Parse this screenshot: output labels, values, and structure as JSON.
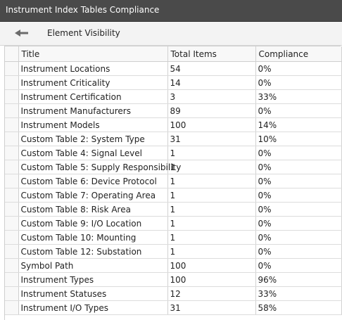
{
  "window": {
    "title": "Instrument Index Tables Compliance"
  },
  "toolbar": {
    "back_icon": "arrow-left-icon",
    "label": "Element Visibility"
  },
  "table": {
    "columns": [
      "Title",
      "Total Items",
      "Compliance"
    ],
    "rows": [
      {
        "title": "Instrument Locations",
        "total": "54",
        "compliance": "0%"
      },
      {
        "title": "Instrument Criticality",
        "total": "14",
        "compliance": "0%"
      },
      {
        "title": "Instrument Certification",
        "total": "3",
        "compliance": "33%"
      },
      {
        "title": "Instrument Manufacturers",
        "total": "89",
        "compliance": "0%"
      },
      {
        "title": "Instrument Models",
        "total": "100",
        "compliance": "14%"
      },
      {
        "title": "Custom Table 2: System Type",
        "total": "31",
        "compliance": "10%"
      },
      {
        "title": "Custom Table 4: Signal Level",
        "total": "1",
        "compliance": "0%"
      },
      {
        "title": "Custom Table 5: Supply Responsibility",
        "total": "1",
        "compliance": "0%"
      },
      {
        "title": "Custom Table 6: Device Protocol",
        "total": "1",
        "compliance": "0%"
      },
      {
        "title": "Custom Table 7: Operating Area",
        "total": "1",
        "compliance": "0%"
      },
      {
        "title": "Custom Table 8: Risk Area",
        "total": "1",
        "compliance": "0%"
      },
      {
        "title": "Custom Table 9: I/O Location",
        "total": "1",
        "compliance": "0%"
      },
      {
        "title": "Custom Table 10: Mounting",
        "total": "1",
        "compliance": "0%"
      },
      {
        "title": "Custom Table 12: Substation",
        "total": "1",
        "compliance": "0%"
      },
      {
        "title": "Symbol Path",
        "total": "100",
        "compliance": "0%"
      },
      {
        "title": "Instrument Types",
        "total": "100",
        "compliance": "96%"
      },
      {
        "title": "Instrument Statuses",
        "total": "12",
        "compliance": "33%"
      },
      {
        "title": "Instrument I/O Types",
        "total": "31",
        "compliance": "58%"
      }
    ]
  }
}
